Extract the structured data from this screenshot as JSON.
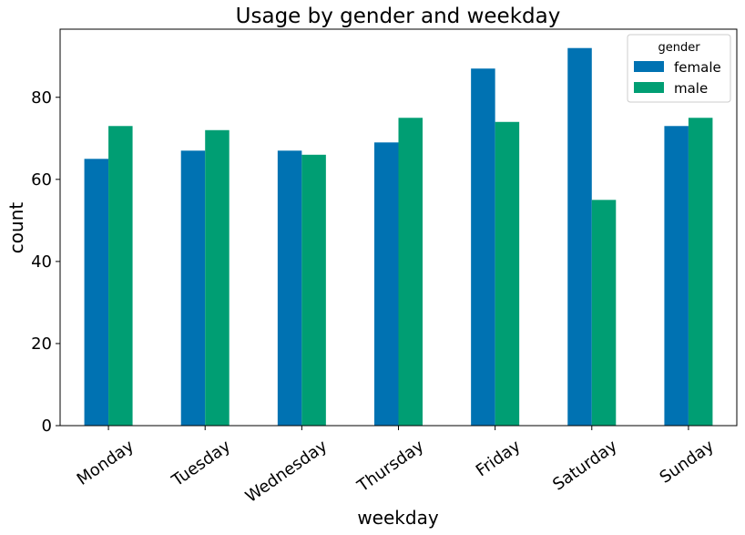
{
  "chart_data": {
    "type": "bar",
    "title": "Usage by gender and weekday",
    "xlabel": "weekday",
    "ylabel": "count",
    "categories": [
      "Monday",
      "Tuesday",
      "Wednesday",
      "Thursday",
      "Friday",
      "Saturday",
      "Sunday"
    ],
    "series": [
      {
        "name": "female",
        "values": [
          65,
          67,
          67,
          69,
          87,
          92,
          73
        ],
        "color": "#0072b2"
      },
      {
        "name": "male",
        "values": [
          73,
          72,
          66,
          75,
          74,
          55,
          75
        ],
        "color": "#009e73"
      }
    ],
    "ylim": [
      0,
      96.6
    ],
    "yticks": [
      0,
      20,
      40,
      60,
      80
    ],
    "grid": false,
    "legend": {
      "title": "gender",
      "placement": "top-right"
    }
  }
}
